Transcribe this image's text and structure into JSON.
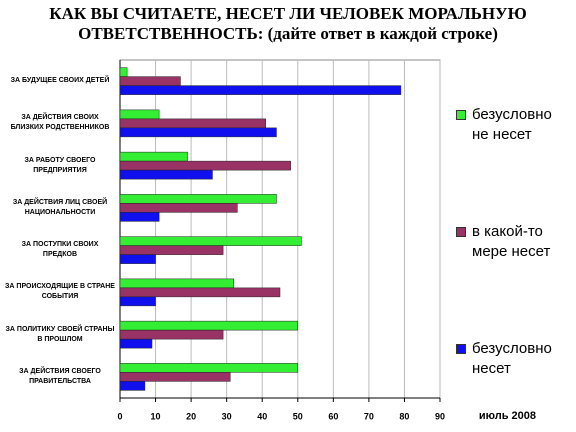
{
  "chart_data": {
    "type": "bar",
    "orientation": "horizontal",
    "title": "КАК ВЫ СЧИТАЕТЕ, НЕСЕТ ЛИ ЧЕЛОВЕК МОРАЛЬНУЮ ОТВЕТСТВЕННОСТЬ: (дайте ответ в каждой строке)",
    "note": "июль 2008",
    "categories": [
      "ЗА БУДУЩЕЕ СВОИХ ДЕТЕЙ",
      "ЗА ДЕЙСТВИЯ СВОИХ БЛИЗКИХ РОДСТВЕННИКОВ",
      "ЗА РАБОТУ СВОЕГО ПРЕДПРИЯТИЯ",
      "ЗА ДЕЙСТВИЯ ЛИЦ СВОЕЙ НАЦИОНАЛЬНОСТИ",
      "ЗА ПОСТУПКИ СВОИХ ПРЕДКОВ",
      "ЗА ПРОИСХОДЯЩИЕ В СТРАНЕ СОБЫТИЯ",
      "ЗА ПОЛИТИКУ СВОЕЙ СТРАНЫ В ПРОШЛОМ",
      "ЗА ДЕЙСТВИЯ СВОЕГО ПРАВИТЕЛЬСТВА"
    ],
    "series": [
      {
        "name": "безусловно не несет",
        "color": "#33ee33",
        "values": [
          2,
          11,
          19,
          44,
          51,
          32,
          50,
          50
        ]
      },
      {
        "name": "в какой-то мере несет",
        "color": "#993366",
        "values": [
          17,
          41,
          48,
          33,
          29,
          45,
          29,
          31
        ]
      },
      {
        "name": "безусловно несет",
        "color": "#1010ee",
        "values": [
          79,
          44,
          26,
          11,
          10,
          10,
          9,
          7
        ]
      }
    ],
    "xlim": [
      0,
      90
    ],
    "xticks": [
      0,
      10,
      20,
      30,
      40,
      50,
      60,
      70,
      80,
      90
    ],
    "grid": true
  }
}
